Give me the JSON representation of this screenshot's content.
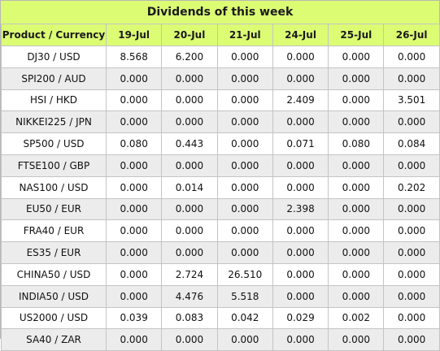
{
  "title": "Dividends of this week",
  "header": {
    "product": "Product / Currency",
    "dates": [
      "19-Jul",
      "20-Jul",
      "21-Jul",
      "24-Jul",
      "25-Jul",
      "26-Jul"
    ]
  },
  "rows": [
    {
      "product": "DJ30 / USD",
      "values": [
        "8.568",
        "6.200",
        "0.000",
        "0.000",
        "0.000",
        "0.000"
      ]
    },
    {
      "product": "SPI200 / AUD",
      "values": [
        "0.000",
        "0.000",
        "0.000",
        "0.000",
        "0.000",
        "0.000"
      ]
    },
    {
      "product": "HSI / HKD",
      "values": [
        "0.000",
        "0.000",
        "0.000",
        "2.409",
        "0.000",
        "3.501"
      ]
    },
    {
      "product": "NIKKEI225 / JPN",
      "values": [
        "0.000",
        "0.000",
        "0.000",
        "0.000",
        "0.000",
        "0.000"
      ]
    },
    {
      "product": "SP500 / USD",
      "values": [
        "0.080",
        "0.443",
        "0.000",
        "0.071",
        "0.080",
        "0.084"
      ]
    },
    {
      "product": "FTSE100 / GBP",
      "values": [
        "0.000",
        "0.000",
        "0.000",
        "0.000",
        "0.000",
        "0.000"
      ]
    },
    {
      "product": "NAS100 / USD",
      "values": [
        "0.000",
        "0.014",
        "0.000",
        "0.000",
        "0.000",
        "0.202"
      ]
    },
    {
      "product": "EU50 / EUR",
      "values": [
        "0.000",
        "0.000",
        "0.000",
        "2.398",
        "0.000",
        "0.000"
      ]
    },
    {
      "product": "FRA40 / EUR",
      "values": [
        "0.000",
        "0.000",
        "0.000",
        "0.000",
        "0.000",
        "0.000"
      ]
    },
    {
      "product": "ES35 / EUR",
      "values": [
        "0.000",
        "0.000",
        "0.000",
        "0.000",
        "0.000",
        "0.000"
      ]
    },
    {
      "product": "CHINA50 / USD",
      "values": [
        "0.000",
        "2.724",
        "26.510",
        "0.000",
        "0.000",
        "0.000"
      ]
    },
    {
      "product": "INDIA50 / USD",
      "values": [
        "0.000",
        "4.476",
        "5.518",
        "0.000",
        "0.000",
        "0.000"
      ]
    },
    {
      "product": "US2000 / USD",
      "values": [
        "0.039",
        "0.083",
        "0.042",
        "0.029",
        "0.002",
        "0.000"
      ]
    },
    {
      "product": "SA40 / ZAR",
      "values": [
        "0.000",
        "0.000",
        "0.000",
        "0.000",
        "0.000",
        "0.000"
      ]
    }
  ],
  "colors": {
    "header_background": "#dcfc74",
    "row_alt_background": "#ececec",
    "border": "#c4c4c4"
  }
}
